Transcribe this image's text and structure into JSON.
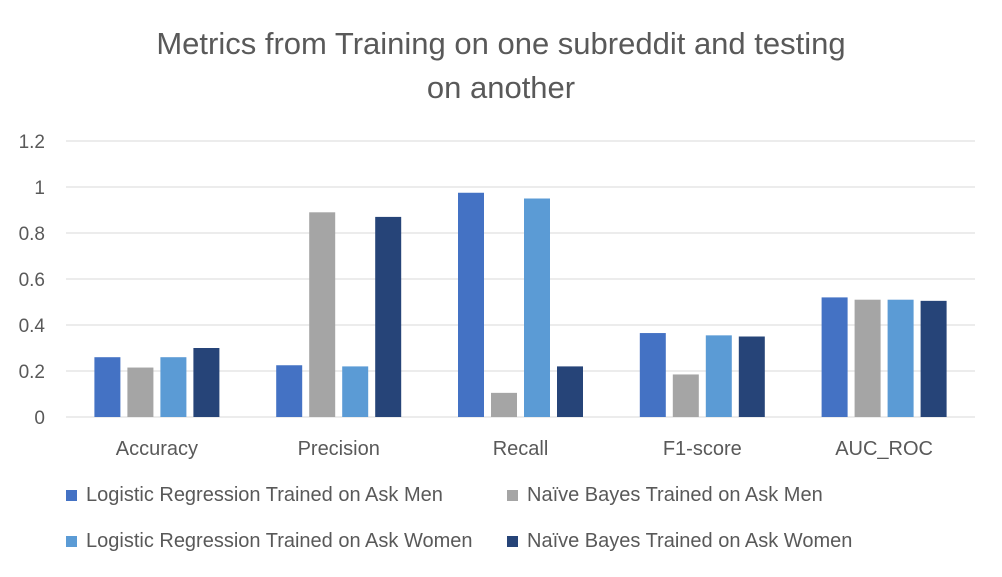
{
  "chart_data": {
    "type": "bar",
    "title": "Metrics from Training on one subreddit and testing on another",
    "title_lines": [
      "Metrics from Training on one subreddit and testing",
      "on another"
    ],
    "categories": [
      "Accuracy",
      "Precision",
      "Recall",
      "F1-score",
      "AUC_ROC"
    ],
    "series": [
      {
        "name": "Logistic Regression Trained on Ask Men",
        "color": "#4472C4",
        "values": [
          0.26,
          0.225,
          0.975,
          0.365,
          0.52
        ]
      },
      {
        "name": "Naïve Bayes Trained on Ask Men",
        "color": "#A5A5A5",
        "values": [
          0.215,
          0.89,
          0.105,
          0.185,
          0.51
        ]
      },
      {
        "name": "Logistic Regression Trained on Ask Women",
        "color": "#5B9BD5",
        "values": [
          0.26,
          0.22,
          0.95,
          0.355,
          0.51
        ]
      },
      {
        "name": "Naïve Bayes Trained on Ask Women",
        "color": "#264478",
        "values": [
          0.3,
          0.87,
          0.22,
          0.35,
          0.505
        ]
      }
    ],
    "y_ticks": [
      "0",
      "0.2",
      "0.4",
      "0.6",
      "0.8",
      "1",
      "1.2"
    ],
    "ylim": [
      0,
      1.2
    ],
    "grid": true,
    "legend_position": "bottom",
    "xlabel": "",
    "ylabel": ""
  }
}
